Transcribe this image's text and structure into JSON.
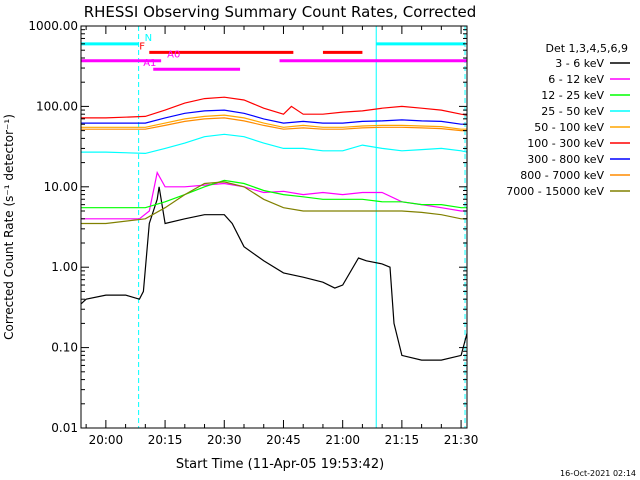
{
  "chart_data": {
    "type": "line",
    "title": "RHESSI Observing Summary Count Rates, Corrected",
    "xlabel": "Start Time (11-Apr-05 19:53:42)",
    "ylabel": "Corrected Count Rate (s⁻¹ detector⁻¹)",
    "yscale": "log",
    "ylim": [
      0.01,
      1000
    ],
    "xlim_minutes_after_2000": [
      -6.3,
      91.5
    ],
    "y_ticks": [
      "1000.00",
      "100.00",
      "10.00",
      "1.00",
      "0.10",
      "0.01"
    ],
    "x_ticks": [
      "20:00",
      "20:15",
      "20:30",
      "20:45",
      "21:00",
      "21:15",
      "21:30"
    ],
    "legend_title": "Det 1,3,4,5,6,9",
    "legend_placement": "right",
    "grid": false,
    "series": [
      {
        "name": "3 - 6 keV",
        "color": "#000000",
        "x": [
          -6.3,
          -5,
          0,
          5,
          8.5,
          9.5,
          11,
          13,
          13.5,
          15,
          20,
          25,
          30,
          32,
          35,
          40,
          45,
          50,
          55,
          58,
          60,
          64,
          66,
          70,
          72,
          73,
          75,
          80,
          85,
          90,
          91.5
        ],
        "y": [
          0.35,
          0.4,
          0.45,
          0.45,
          0.4,
          0.5,
          3.5,
          7,
          10,
          3.5,
          4,
          4.5,
          4.5,
          3.5,
          1.8,
          1.2,
          0.85,
          0.75,
          0.65,
          0.55,
          0.6,
          1.3,
          1.2,
          1.1,
          1,
          0.2,
          0.08,
          0.07,
          0.07,
          0.08,
          0.15
        ]
      },
      {
        "name": "6 - 12 keV",
        "color": "#ff00ff",
        "x": [
          -6.3,
          0,
          8.5,
          11,
          13,
          15,
          20,
          25,
          30,
          35,
          40,
          45,
          50,
          55,
          60,
          65,
          70,
          75,
          80,
          85,
          90,
          91.5
        ],
        "y": [
          4,
          4,
          4,
          5,
          15,
          10,
          10,
          10.5,
          11,
          10,
          8.5,
          8.8,
          8,
          8.5,
          8,
          8.5,
          8.5,
          6.5,
          6,
          5.5,
          5,
          5
        ]
      },
      {
        "name": "12 - 25 keV",
        "color": "#00ff00",
        "x": [
          -6.3,
          0,
          10,
          15,
          20,
          25,
          30,
          35,
          40,
          45,
          50,
          55,
          60,
          65,
          70,
          75,
          80,
          85,
          90,
          91.5
        ],
        "y": [
          5.5,
          5.5,
          5.5,
          6.5,
          8,
          10,
          12,
          11,
          9,
          8,
          7.5,
          7,
          7,
          7,
          6.5,
          6.5,
          6,
          6,
          5.5,
          5.5
        ]
      },
      {
        "name": "25 - 50 keV",
        "color": "#00ffff",
        "x": [
          -6.3,
          0,
          10,
          15,
          20,
          25,
          30,
          35,
          40,
          45,
          50,
          55,
          60,
          65,
          70,
          75,
          80,
          85,
          90,
          91.5
        ],
        "y": [
          27,
          27,
          26,
          30,
          35,
          42,
          45,
          42,
          35,
          30,
          30,
          28,
          28,
          33,
          30,
          28,
          29,
          30,
          28,
          27
        ]
      },
      {
        "name": "50 - 100 keV",
        "color": "#ffa500",
        "x": [
          -6.3,
          0,
          10,
          15,
          20,
          25,
          30,
          35,
          40,
          45,
          50,
          55,
          60,
          65,
          70,
          75,
          80,
          85,
          90,
          91.5
        ],
        "y": [
          55,
          55,
          55,
          62,
          70,
          75,
          78,
          72,
          62,
          55,
          58,
          55,
          55,
          57,
          58,
          58,
          57,
          56,
          52,
          52
        ]
      },
      {
        "name": "100 - 300 keV",
        "color": "#ff0000",
        "x": [
          -6.3,
          0,
          10,
          15,
          20,
          25,
          30,
          35,
          40,
          45,
          47,
          50,
          55,
          60,
          65,
          70,
          75,
          80,
          85,
          90,
          91.5
        ],
        "y": [
          72,
          72,
          75,
          90,
          110,
          125,
          130,
          120,
          95,
          80,
          100,
          80,
          80,
          85,
          88,
          95,
          100,
          95,
          90,
          80,
          78
        ]
      },
      {
        "name": "300 - 800 keV",
        "color": "#0000ff",
        "x": [
          -6.3,
          0,
          10,
          15,
          20,
          25,
          30,
          35,
          40,
          45,
          50,
          55,
          60,
          65,
          70,
          75,
          80,
          85,
          90,
          91.5
        ],
        "y": [
          62,
          62,
          62,
          72,
          82,
          88,
          90,
          82,
          70,
          62,
          65,
          62,
          62,
          65,
          66,
          68,
          66,
          65,
          60,
          60
        ]
      },
      {
        "name": "800 - 7000 keV",
        "color": "#ff8c00",
        "x": [
          -6.3,
          0,
          10,
          15,
          20,
          25,
          30,
          35,
          40,
          45,
          50,
          55,
          60,
          65,
          70,
          75,
          80,
          85,
          90,
          91.5
        ],
        "y": [
          52,
          52,
          52,
          58,
          65,
          70,
          72,
          66,
          58,
          52,
          54,
          52,
          52,
          54,
          55,
          55,
          54,
          53,
          50,
          50
        ]
      },
      {
        "name": "7000 - 15000 keV",
        "color": "#808000",
        "x": [
          -6.3,
          0,
          10,
          15,
          20,
          25,
          30,
          35,
          40,
          45,
          50,
          55,
          60,
          65,
          70,
          75,
          80,
          85,
          90,
          91.5
        ],
        "y": [
          3.5,
          3.5,
          4,
          5.5,
          8,
          11,
          11.5,
          10,
          7,
          5.5,
          5,
          5,
          5,
          5,
          5,
          5,
          4.8,
          4.5,
          4,
          4
        ]
      }
    ],
    "vertical_markers_minutes": [
      -6.3,
      8.3,
      68.5,
      91
    ],
    "vertical_marker_color": "#00ffff",
    "flag_bars": [
      {
        "label": "N",
        "color": "#00ffff",
        "y": 600,
        "segments": [
          [
            -6.3,
            8.3
          ],
          [
            68.5,
            91
          ]
        ]
      },
      {
        "label": "F",
        "color": "#ff0000",
        "y": 470,
        "segments": [
          [
            11.0,
            47.5
          ],
          [
            55.0,
            65.0
          ]
        ]
      },
      {
        "label": "A0",
        "color": "#ff00ff",
        "y": 370,
        "segments": [
          [
            -6.3,
            14.0
          ],
          [
            44.0,
            91.5
          ]
        ]
      },
      {
        "label": "A1",
        "color": "#ff00ff",
        "y": 290,
        "segments": [
          [
            12.0,
            34.0
          ]
        ]
      }
    ]
  },
  "footer_timestamp": "16-Oct-2021 02:14"
}
